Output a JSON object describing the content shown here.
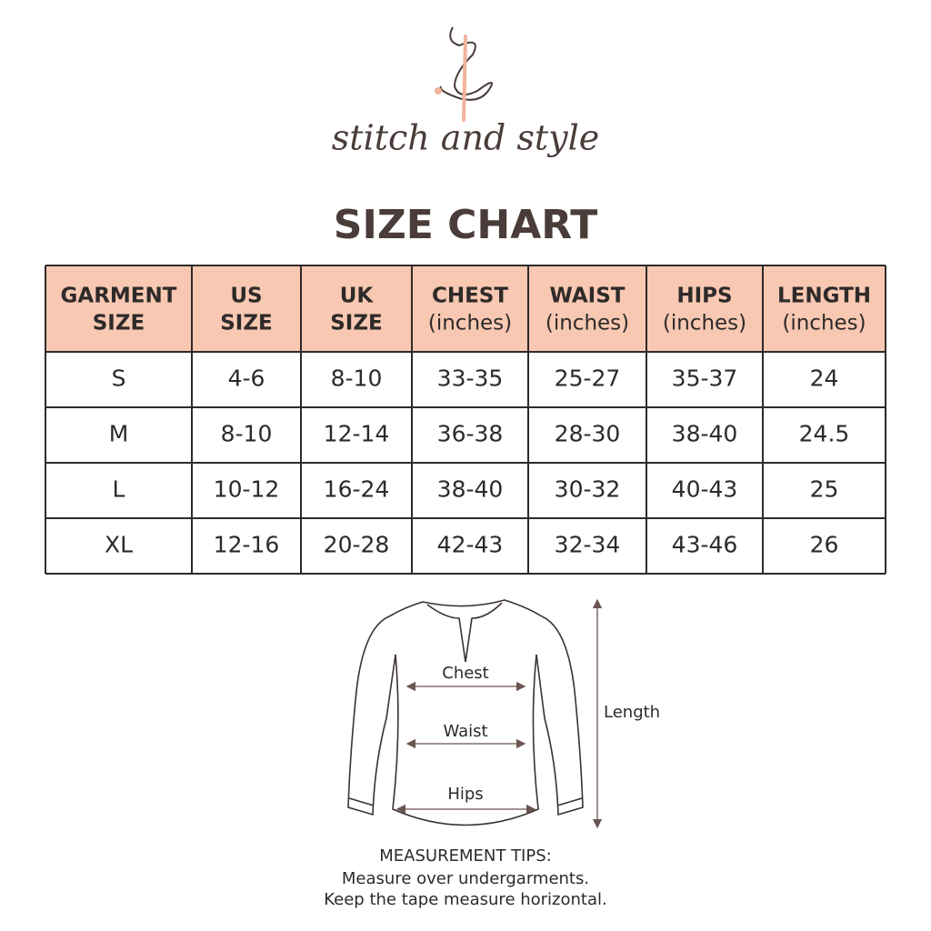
{
  "brand": "stitch and style",
  "title": "SIZE CHART",
  "table": {
    "headers": [
      [
        "GARMENT",
        "SIZE"
      ],
      [
        "US",
        "SIZE"
      ],
      [
        "UK",
        "SIZE"
      ],
      [
        "CHEST",
        "(inches)"
      ],
      [
        "WAIST",
        "(inches)"
      ],
      [
        "HIPS",
        "(inches)"
      ],
      [
        "LENGTH",
        "(inches)"
      ]
    ],
    "rows": [
      [
        "S",
        "4-6",
        "8-10",
        "33-35",
        "25-27",
        "35-37",
        "24"
      ],
      [
        "M",
        "8-10",
        "12-14",
        "36-38",
        "28-30",
        "38-40",
        "24.5"
      ],
      [
        "L",
        "10-12",
        "16-24",
        "38-40",
        "30-32",
        "40-43",
        "25"
      ],
      [
        "XL",
        "12-16",
        "20-28",
        "42-43",
        "32-34",
        "43-46",
        "26"
      ]
    ]
  },
  "diagram": {
    "chest": "Chest",
    "waist": "Waist",
    "hips": "Hips",
    "length": "Length"
  },
  "tips": [
    "MEASUREMENT TIPS:",
    "Measure over undergarments.",
    "Keep the tape measure horizontal."
  ]
}
